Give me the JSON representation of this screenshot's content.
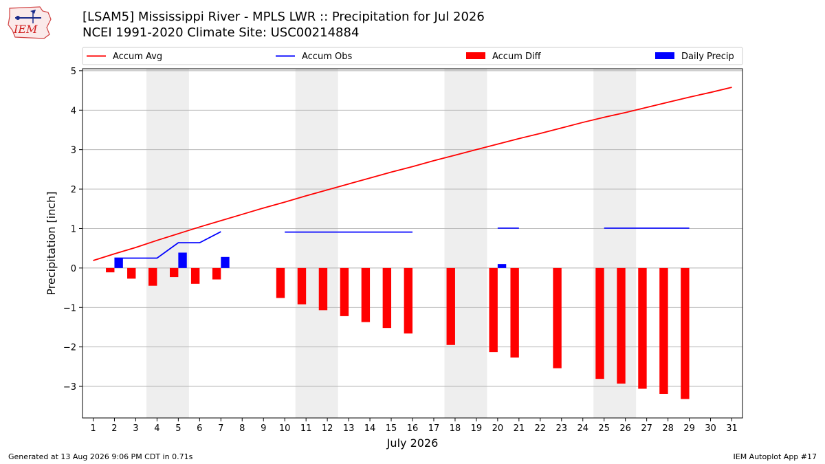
{
  "header": {
    "title_line1": "[LSAM5] Mississippi River - MPLS LWR :: Precipitation for Jul 2026",
    "title_line2": "NCEI 1991-2020 Climate Site: USC00214884"
  },
  "logo": {
    "text": "IEM"
  },
  "footer": {
    "generated": "Generated at 13 Aug 2026 9:06 PM CDT in 0.71s",
    "app": "IEM Autoplot App #17"
  },
  "colors": {
    "accum_avg": "#ff0000",
    "accum_obs": "#0000ff",
    "accum_diff": "#ff0000",
    "daily_precip": "#0000ff",
    "weekend_shade": "#eeeeee",
    "grid": "#b0b0b0"
  },
  "chart_data": {
    "type": "bar",
    "xlabel": "July 2026",
    "ylabel": "Precipitation [inch]",
    "xlim": [
      0.5,
      31.5
    ],
    "ylim": [
      -3.8,
      5.05
    ],
    "x_ticks": [
      1,
      2,
      3,
      4,
      5,
      6,
      7,
      8,
      9,
      10,
      11,
      12,
      13,
      14,
      15,
      16,
      17,
      18,
      19,
      20,
      21,
      22,
      23,
      24,
      25,
      26,
      27,
      28,
      29,
      30,
      31
    ],
    "y_ticks": [
      5,
      4,
      3,
      2,
      1,
      0,
      -1,
      -2,
      -3
    ],
    "y_tick_labels": [
      "5",
      "4",
      "3",
      "2",
      "1",
      "0",
      "−1",
      "−2",
      "−3"
    ],
    "grid": "y",
    "legend_position": "top",
    "shaded_periods": [
      [
        3.5,
        5.5
      ],
      [
        10.5,
        12.5
      ],
      [
        17.5,
        19.5
      ],
      [
        24.5,
        26.5
      ]
    ],
    "legend": [
      "Accum Avg",
      "Accum Obs",
      "Accum Diff",
      "Daily Precip"
    ],
    "series": [
      {
        "name": "Accum Avg",
        "kind": "line",
        "x": [
          1,
          2,
          3,
          4,
          5,
          6,
          7,
          8,
          9,
          10,
          11,
          12,
          13,
          14,
          15,
          16,
          17,
          18,
          19,
          20,
          21,
          22,
          23,
          24,
          25,
          26,
          27,
          28,
          29,
          30,
          31
        ],
        "values": [
          0.19,
          0.36,
          0.52,
          0.7,
          0.87,
          1.04,
          1.2,
          1.36,
          1.52,
          1.67,
          1.83,
          1.98,
          2.13,
          2.28,
          2.43,
          2.57,
          2.72,
          2.86,
          3.0,
          3.14,
          3.28,
          3.41,
          3.55,
          3.69,
          3.82,
          3.94,
          4.07,
          4.2,
          4.33,
          4.45,
          4.58
        ]
      },
      {
        "name": "Accum Obs",
        "kind": "line",
        "segments": [
          {
            "x": [
              2,
              3,
              4,
              5,
              6,
              7
            ],
            "values": [
              0.25,
              0.25,
              0.25,
              0.64,
              0.64,
              0.92
            ]
          },
          {
            "x": [
              10,
              11,
              12,
              13,
              14,
              15,
              16
            ],
            "values": [
              0.91,
              0.91,
              0.91,
              0.91,
              0.91,
              0.91,
              0.91
            ]
          },
          {
            "x": [
              20,
              21
            ],
            "values": [
              1.01,
              1.01
            ]
          },
          {
            "x": [
              25,
              26,
              27,
              28,
              29
            ],
            "values": [
              1.01,
              1.01,
              1.01,
              1.01,
              1.01
            ]
          }
        ]
      },
      {
        "name": "Accum Diff",
        "kind": "bar",
        "x": [
          2,
          3,
          4,
          5,
          6,
          7,
          10,
          11,
          12,
          13,
          14,
          15,
          16,
          18,
          20,
          21,
          23,
          25,
          26,
          27,
          28,
          29
        ],
        "values": [
          -0.11,
          -0.27,
          -0.45,
          -0.23,
          -0.4,
          -0.29,
          -0.76,
          -0.92,
          -1.07,
          -1.22,
          -1.37,
          -1.52,
          -1.66,
          -1.95,
          -2.13,
          -2.27,
          -2.54,
          -2.81,
          -2.93,
          -3.06,
          -3.19,
          -3.32
        ]
      },
      {
        "name": "Daily Precip",
        "kind": "bar",
        "x": [
          2,
          5,
          7,
          20
        ],
        "values": [
          0.25,
          0.39,
          0.28,
          0.1
        ]
      }
    ]
  }
}
